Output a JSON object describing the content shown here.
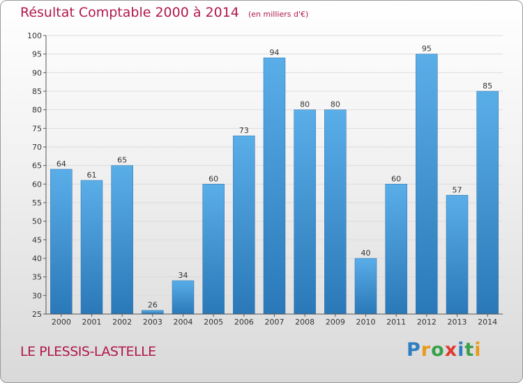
{
  "title": "Résultat Comptable 2000 à 2014",
  "unit_note": "(en milliers d'€)",
  "commune": "LE PLESSIS-LASTELLE",
  "logo": {
    "text": "Proxiti"
  },
  "colors": {
    "title": "#b0174d",
    "bar_top": "#5aaee8",
    "bar_bottom": "#2a78b8",
    "logo": [
      "#2d7fc2",
      "#e89b1a",
      "#3aa04a",
      "#e03a2f"
    ]
  },
  "chart_data": {
    "type": "bar",
    "categories": [
      "2000",
      "2001",
      "2002",
      "2003",
      "2004",
      "2005",
      "2006",
      "2007",
      "2008",
      "2009",
      "2010",
      "2011",
      "2012",
      "2013",
      "2014"
    ],
    "values": [
      64,
      61,
      65,
      26,
      34,
      60,
      73,
      94,
      80,
      80,
      40,
      60,
      95,
      57,
      85
    ],
    "title": "Résultat Comptable 2000 à 2014",
    "xlabel": "",
    "ylabel": "",
    "ylim": [
      25,
      100
    ],
    "yticks": [
      25,
      30,
      35,
      40,
      45,
      50,
      55,
      60,
      65,
      70,
      75,
      80,
      85,
      90,
      95,
      100
    ],
    "grid": true,
    "legend": "none"
  }
}
